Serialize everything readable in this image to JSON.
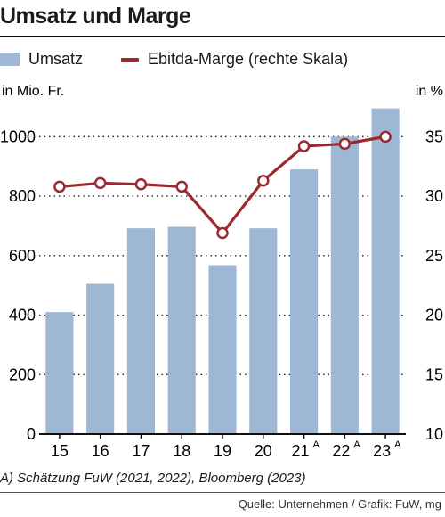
{
  "title": "Umsatz und Marge",
  "legend": {
    "bar_label": "Umsatz",
    "line_label": "Ebitda-Marge (rechte Skala)"
  },
  "colors": {
    "bar": "#9db7d5",
    "line": "#9b2a30",
    "marker_fill": "#ffffff",
    "text": "#1a1a1a"
  },
  "footnote": "A) Schätzung FuW (2021, 2022), Bloomberg (2023)",
  "source": "Quelle: Unternehmen / Grafik: FuW, mg",
  "chart_data": {
    "type": "bar",
    "categories": [
      "15",
      "16",
      "17",
      "18",
      "19",
      "20",
      "21",
      "22",
      "23"
    ],
    "category_superscripts": [
      "",
      "",
      "",
      "",
      "",
      "",
      "A",
      "A",
      "A"
    ],
    "left_axis": {
      "label": "in Mio. Fr.",
      "ylim": [
        0,
        1100
      ],
      "ticks": [
        0,
        200,
        400,
        600,
        800,
        1000
      ]
    },
    "right_axis": {
      "label": "in %",
      "ylim": [
        10,
        37.5
      ],
      "ticks": [
        10,
        15,
        20,
        25,
        30,
        35
      ]
    },
    "grid": true,
    "series": [
      {
        "name": "Umsatz",
        "type": "bar",
        "axis": "left",
        "values": [
          410,
          505,
          692,
          697,
          568,
          692,
          890,
          1000,
          1095
        ]
      },
      {
        "name": "Ebitda-Marge (rechte Skala)",
        "type": "line",
        "axis": "right",
        "values": [
          30.8,
          31.1,
          31.0,
          30.8,
          26.9,
          31.3,
          34.2,
          34.4,
          35.0
        ]
      }
    ]
  }
}
